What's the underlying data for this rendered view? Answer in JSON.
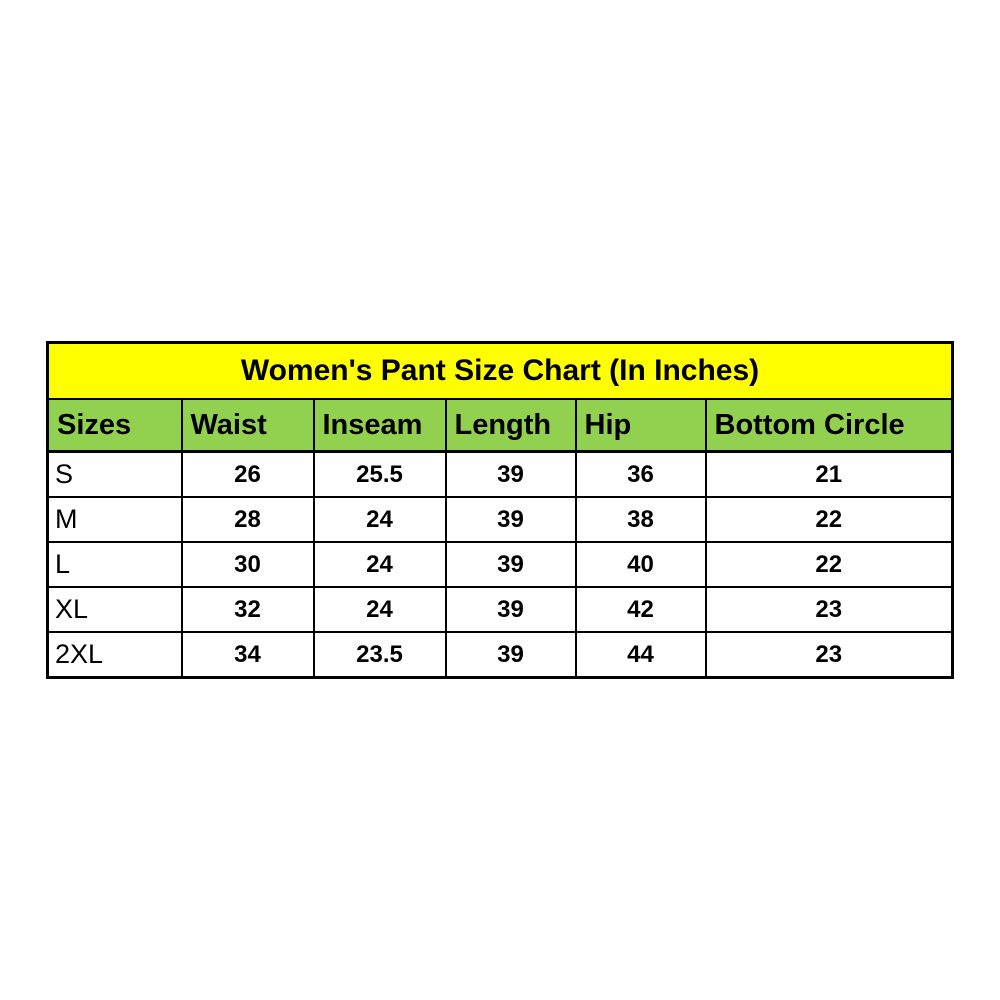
{
  "colors": {
    "title_bg": "#ffff00",
    "header_bg": "#92d050",
    "row_bg": "#ffffff",
    "border": "#000000",
    "text": "#000000"
  },
  "chart_data": {
    "type": "table",
    "title": "Women's Pant Size Chart (In Inches)",
    "columns": [
      "Sizes",
      "Waist",
      "Inseam",
      "Length",
      "Hip",
      "Bottom Circle"
    ],
    "rows": [
      [
        "S",
        "26",
        "25.5",
        "39",
        "36",
        "21"
      ],
      [
        "M",
        "28",
        "24",
        "39",
        "38",
        "22"
      ],
      [
        "L",
        "30",
        "24",
        "39",
        "40",
        "22"
      ],
      [
        "XL",
        "32",
        "24",
        "39",
        "42",
        "23"
      ],
      [
        "2XL",
        "34",
        "23.5",
        "39",
        "44",
        "23"
      ]
    ]
  }
}
